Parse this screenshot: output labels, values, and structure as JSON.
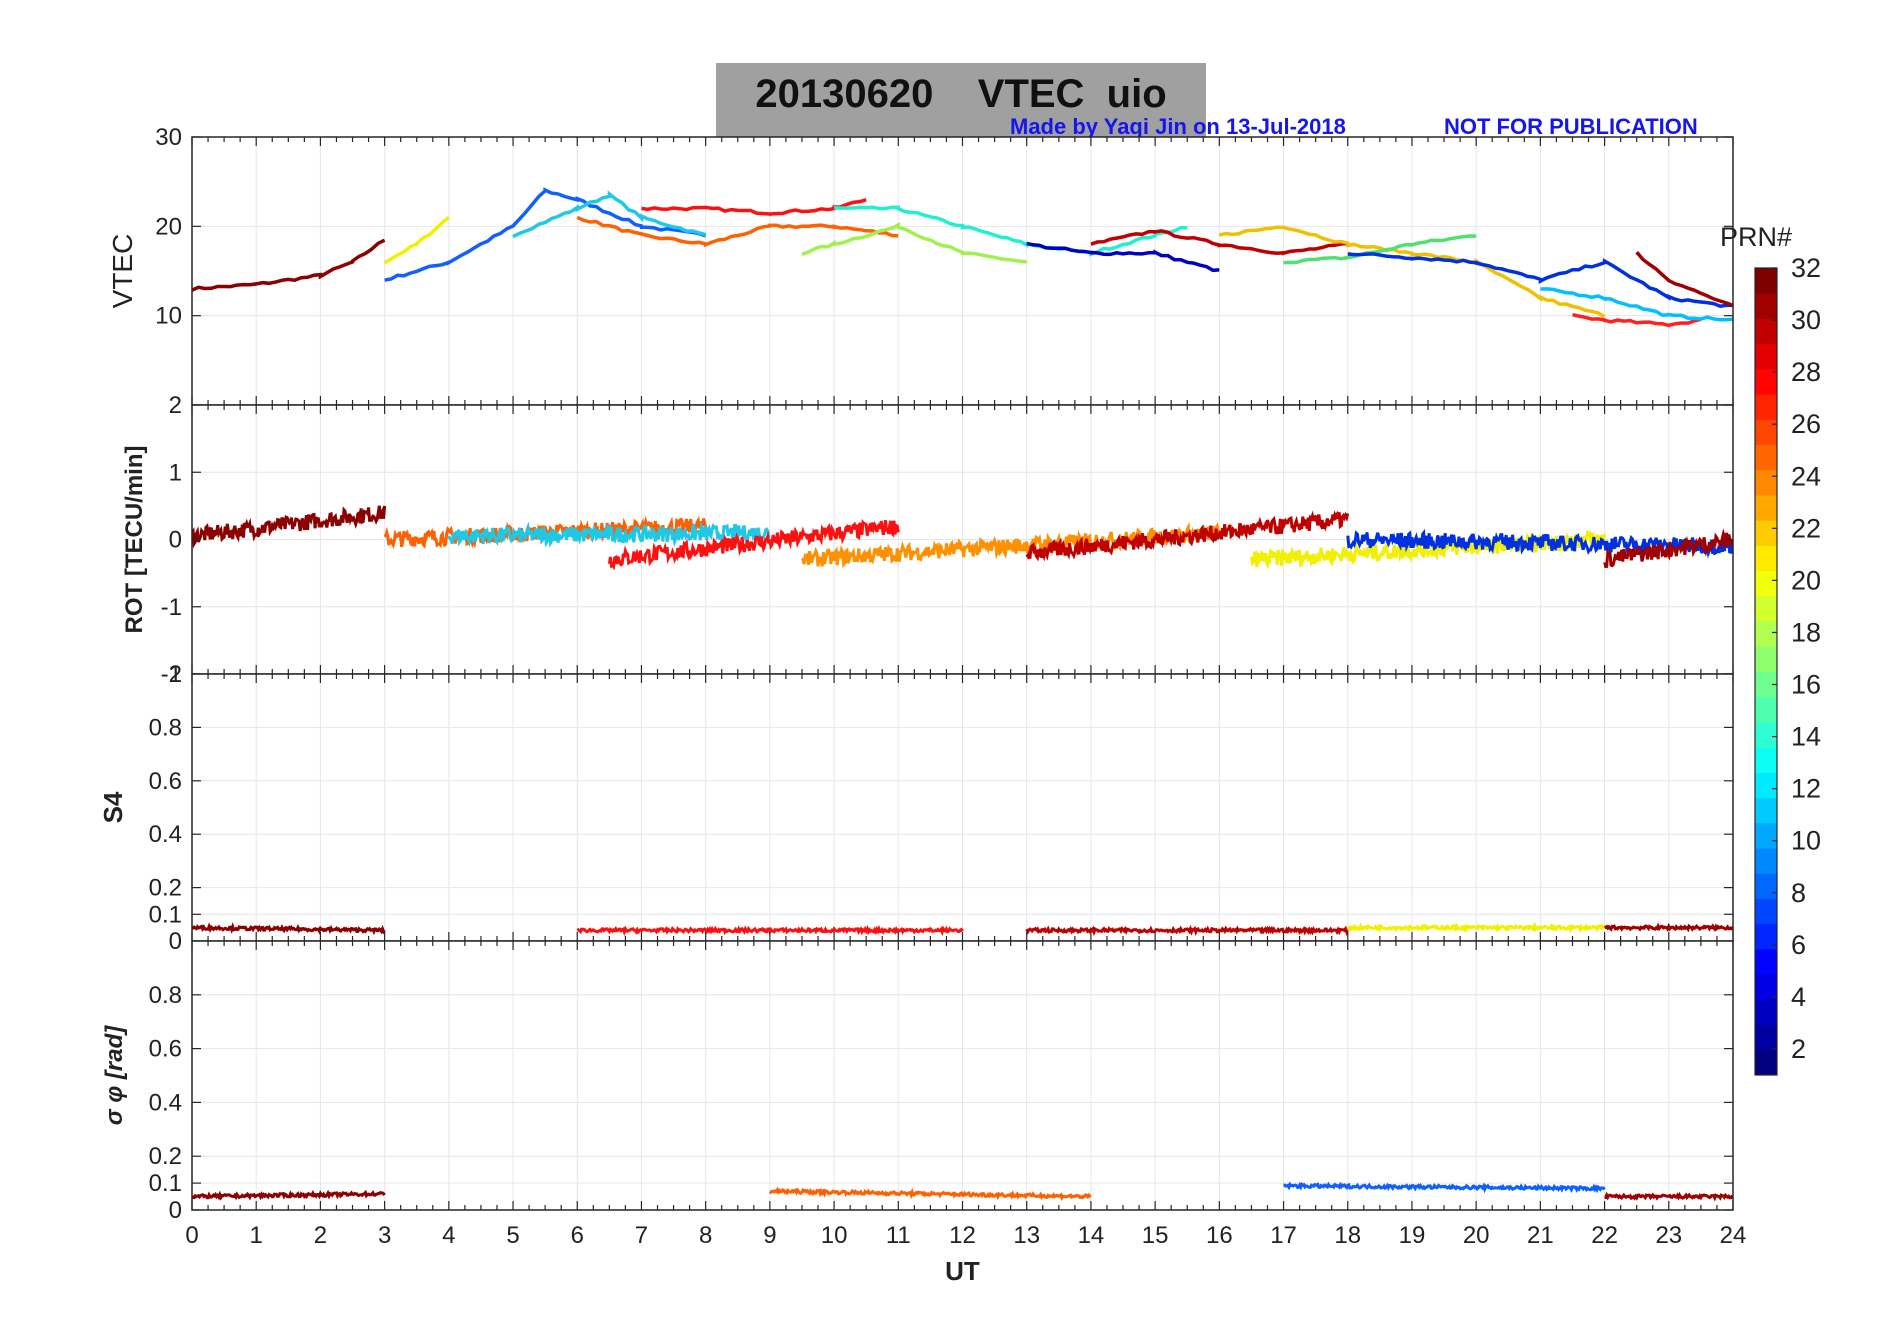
{
  "header": {
    "title": "20130620    VTEC  uio",
    "credit": "Made by Yaqi Jin on 13-Jul-2018",
    "notice": "NOT FOR PUBLICATION"
  },
  "colorbar": {
    "label": "PRN#",
    "ticks": [
      "2",
      "4",
      "6",
      "8",
      "10",
      "12",
      "14",
      "16",
      "18",
      "20",
      "22",
      "24",
      "26",
      "28",
      "30",
      "32"
    ]
  },
  "chart_data": [
    {
      "type": "line",
      "panel": "VTEC",
      "ylabel": "VTEC",
      "ylim": [
        0,
        30
      ],
      "yticks": [
        "10",
        "20",
        "30"
      ],
      "xlim": [
        0,
        24
      ],
      "xticks": [
        "0",
        "1",
        "2",
        "3",
        "4",
        "5",
        "6",
        "7",
        "8",
        "9",
        "10",
        "11",
        "12",
        "13",
        "14",
        "15",
        "16",
        "17",
        "18",
        "19",
        "20",
        "21",
        "22",
        "23",
        "24"
      ],
      "series": [
        {
          "name": "PRN 32",
          "color": "#8b0000",
          "x": [
            0,
            1,
            2,
            2.5,
            3
          ],
          "values": [
            13,
            13.5,
            14.5,
            16,
            18.5
          ]
        },
        {
          "name": "PRN 20",
          "color": "#f0f000",
          "x": [
            3,
            3.5,
            4
          ],
          "values": [
            16,
            18,
            21
          ]
        },
        {
          "name": "PRN 7",
          "color": "#1060ff",
          "x": [
            3,
            4,
            5,
            5.5,
            6,
            7,
            8
          ],
          "values": [
            14,
            16,
            20,
            24,
            23,
            20,
            19
          ]
        },
        {
          "name": "PRN 12",
          "color": "#20c8e8",
          "x": [
            5,
            6,
            6.5,
            7,
            8
          ],
          "values": [
            19,
            22,
            23.5,
            21,
            19
          ]
        },
        {
          "name": "PRN 25",
          "color": "#ff6000",
          "x": [
            6,
            7,
            8,
            9,
            10,
            11
          ],
          "values": [
            21,
            19,
            18,
            20,
            20,
            19
          ]
        },
        {
          "name": "PRN 28",
          "color": "#ff1010",
          "x": [
            7,
            8,
            9,
            10,
            10.5
          ],
          "values": [
            22,
            22,
            21.5,
            22,
            23
          ]
        },
        {
          "name": "PRN 17",
          "color": "#a0f050",
          "x": [
            9.5,
            10,
            11,
            12,
            13
          ],
          "values": [
            17,
            18,
            20,
            17,
            16
          ]
        },
        {
          "name": "PRN 13",
          "color": "#20f0d0",
          "x": [
            10,
            11,
            12,
            13,
            14,
            15,
            15.5
          ],
          "values": [
            22,
            22,
            20,
            18,
            17,
            19,
            20
          ]
        },
        {
          "name": "PRN 2",
          "color": "#0000c0",
          "x": [
            13,
            14,
            15,
            16
          ],
          "values": [
            18,
            17,
            17,
            15
          ]
        },
        {
          "name": "PRN 30",
          "color": "#c00000",
          "x": [
            14,
            15,
            16,
            17,
            18
          ],
          "values": [
            18,
            19.5,
            18,
            17,
            18
          ]
        },
        {
          "name": "PRN 21",
          "color": "#f0c000",
          "x": [
            16,
            17,
            18,
            19,
            20,
            21,
            22
          ],
          "values": [
            19,
            20,
            18,
            17,
            16,
            12,
            10
          ]
        },
        {
          "name": "PRN 16",
          "color": "#50e070",
          "x": [
            17,
            18,
            19,
            20
          ],
          "values": [
            16,
            16.5,
            18,
            19
          ]
        },
        {
          "name": "PRN 5",
          "color": "#0030e0",
          "x": [
            18,
            19,
            20,
            21,
            22,
            23,
            24
          ],
          "values": [
            17,
            16.5,
            16,
            14,
            16,
            12,
            11
          ]
        },
        {
          "name": "PRN 27",
          "color": "#ff2020",
          "x": [
            21.5,
            22,
            23,
            23.5
          ],
          "values": [
            10,
            9.5,
            9,
            9.5
          ]
        },
        {
          "name": "PRN 31",
          "color": "#a00000",
          "x": [
            22.5,
            23,
            24
          ],
          "values": [
            17,
            14,
            11
          ]
        },
        {
          "name": "PRN 11",
          "color": "#00c0ff",
          "x": [
            21,
            22,
            23,
            24
          ],
          "values": [
            13,
            12,
            10,
            9.5
          ]
        }
      ]
    },
    {
      "type": "line",
      "panel": "ROT",
      "ylabel": "ROT [TECU/min]",
      "ylim": [
        -2,
        2
      ],
      "yticks": [
        "-2",
        "-1",
        "0",
        "1",
        "2"
      ],
      "xlim": [
        0,
        24
      ],
      "series": [
        {
          "name": "PRN 32",
          "color": "#8b0000",
          "x": [
            0,
            3
          ],
          "values": [
            0.05,
            0.4
          ]
        },
        {
          "name": "PRN 25",
          "color": "#ff6000",
          "x": [
            3,
            8
          ],
          "values": [
            0,
            0.2
          ]
        },
        {
          "name": "PRN 12",
          "color": "#20c8e8",
          "x": [
            4,
            9
          ],
          "values": [
            0.05,
            0.1
          ]
        },
        {
          "name": "PRN 28",
          "color": "#ff1010",
          "x": [
            6.5,
            11
          ],
          "values": [
            -0.3,
            0.2
          ]
        },
        {
          "name": "PRN 23",
          "color": "#ff9000",
          "x": [
            9.5,
            16
          ],
          "values": [
            -0.3,
            0.1
          ]
        },
        {
          "name": "PRN 30",
          "color": "#c00000",
          "x": [
            13,
            18
          ],
          "values": [
            -0.2,
            0.3
          ]
        },
        {
          "name": "PRN 20",
          "color": "#f0f000",
          "x": [
            16.5,
            22
          ],
          "values": [
            -0.3,
            0
          ]
        },
        {
          "name": "PRN 5",
          "color": "#0030e0",
          "x": [
            18,
            24
          ],
          "values": [
            0,
            -0.1
          ]
        },
        {
          "name": "PRN 31",
          "color": "#a00000",
          "x": [
            22,
            24
          ],
          "values": [
            -0.3,
            0
          ]
        }
      ]
    },
    {
      "type": "line",
      "panel": "S4",
      "ylabel": "S4",
      "ylim": [
        0,
        1
      ],
      "yticks": [
        "0",
        "0.1",
        "0.2",
        "0.4",
        "0.6",
        "0.8",
        "1"
      ],
      "xlim": [
        0,
        24
      ],
      "series": [
        {
          "name": "PRN 32",
          "color": "#8b0000",
          "x": [
            0,
            3
          ],
          "values": [
            0.05,
            0.04
          ]
        },
        {
          "name": "PRN 28",
          "color": "#ff1010",
          "x": [
            6,
            12
          ],
          "values": [
            0.04,
            0.04
          ]
        },
        {
          "name": "PRN 30",
          "color": "#c00000",
          "x": [
            13,
            18
          ],
          "values": [
            0.04,
            0.04
          ]
        },
        {
          "name": "PRN 20",
          "color": "#f0f000",
          "x": [
            18,
            22
          ],
          "values": [
            0.05,
            0.05
          ]
        },
        {
          "name": "PRN 31",
          "color": "#a00000",
          "x": [
            22,
            24
          ],
          "values": [
            0.05,
            0.05
          ]
        }
      ]
    },
    {
      "type": "line",
      "panel": "sigma_phi",
      "ylabel": "σ φ [rad]",
      "ylim": [
        0,
        1
      ],
      "yticks": [
        "0",
        "0.1",
        "0.2",
        "0.4",
        "0.6",
        "0.8"
      ],
      "xlim": [
        0,
        24
      ],
      "xlabel": "UT",
      "series": [
        {
          "name": "PRN 32",
          "color": "#8b0000",
          "x": [
            0,
            3
          ],
          "values": [
            0.05,
            0.06
          ]
        },
        {
          "name": "PRN 25",
          "color": "#ff6000",
          "x": [
            9,
            14
          ],
          "values": [
            0.07,
            0.05
          ]
        },
        {
          "name": "PRN 7",
          "color": "#1060ff",
          "x": [
            17,
            22
          ],
          "values": [
            0.09,
            0.08
          ]
        },
        {
          "name": "PRN 31",
          "color": "#a00000",
          "x": [
            22,
            24
          ],
          "values": [
            0.05,
            0.05
          ]
        }
      ]
    }
  ]
}
